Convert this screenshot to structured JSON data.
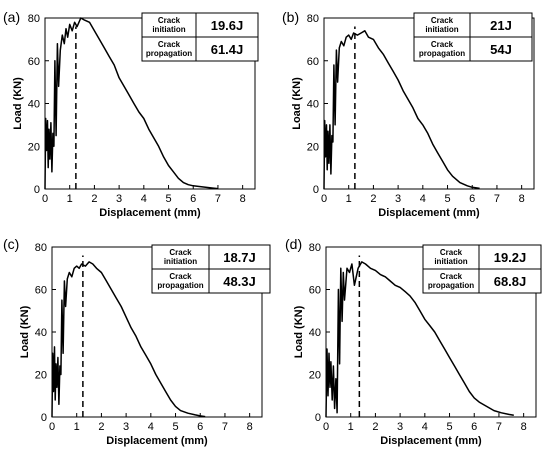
{
  "chart_data": [
    {
      "type": "line",
      "panel_label": "(a)",
      "xlabel": "Displacement (mm)",
      "ylabel": "Load (KN)",
      "xlim": [
        0,
        8.5
      ],
      "ylim": [
        0,
        80
      ],
      "xticks": [
        "0",
        "1",
        "2",
        "3",
        "4",
        "5",
        "6",
        "7",
        "8"
      ],
      "yticks": [
        "0",
        "20",
        "40",
        "60",
        "80"
      ],
      "dashed_line_x": 1.25,
      "table": [
        {
          "label": [
            "Crack",
            "initiation"
          ],
          "value": "19.6J"
        },
        {
          "label": [
            "Crack",
            "propagation"
          ],
          "value": "61.4J"
        }
      ],
      "x": [
        0,
        0.03,
        0.06,
        0.1,
        0.13,
        0.16,
        0.2,
        0.24,
        0.28,
        0.32,
        0.36,
        0.4,
        0.45,
        0.5,
        0.55,
        0.62,
        0.7,
        0.78,
        0.85,
        0.92,
        1.0,
        1.1,
        1.2,
        1.3,
        1.45,
        1.6,
        1.8,
        2.0,
        2.2,
        2.4,
        2.6,
        2.8,
        3.0,
        3.2,
        3.4,
        3.6,
        3.8,
        4.0,
        4.2,
        4.4,
        4.6,
        4.8,
        5.0,
        5.2,
        5.4,
        5.6,
        5.8,
        6.0,
        6.2,
        6.5,
        6.8,
        7.0
      ],
      "y": [
        0,
        33,
        18,
        32,
        10,
        28,
        14,
        31,
        8,
        26,
        20,
        60,
        25,
        68,
        48,
        65,
        72,
        68,
        75,
        71,
        77,
        74,
        78,
        76,
        80,
        79,
        78,
        74,
        70,
        66,
        62,
        58,
        52,
        48,
        44,
        40,
        36,
        33,
        28,
        24,
        20,
        15,
        11,
        8,
        5,
        3,
        2,
        1.5,
        1.2,
        0.8,
        0.4,
        0.2
      ]
    },
    {
      "type": "line",
      "panel_label": "(b)",
      "xlabel": "Displacement (mm)",
      "ylabel": "Load (KN)",
      "xlim": [
        0,
        8.5
      ],
      "ylim": [
        0,
        80
      ],
      "xticks": [
        "0",
        "1",
        "2",
        "3",
        "4",
        "5",
        "6",
        "7",
        "8"
      ],
      "yticks": [
        "0",
        "20",
        "40",
        "60",
        "80"
      ],
      "dashed_line_x": 1.25,
      "table": [
        {
          "label": [
            "Crack",
            "initiation"
          ],
          "value": "21J"
        },
        {
          "label": [
            "Crack",
            "propagation"
          ],
          "value": "54J"
        }
      ],
      "x": [
        0,
        0.03,
        0.06,
        0.1,
        0.13,
        0.16,
        0.2,
        0.24,
        0.28,
        0.32,
        0.36,
        0.4,
        0.45,
        0.5,
        0.55,
        0.62,
        0.7,
        0.8,
        0.9,
        1.0,
        1.1,
        1.2,
        1.35,
        1.5,
        1.65,
        1.8,
        2.0,
        2.2,
        2.4,
        2.6,
        2.8,
        3.0,
        3.2,
        3.4,
        3.6,
        3.8,
        4.0,
        4.2,
        4.4,
        4.6,
        4.8,
        5.0,
        5.2,
        5.5,
        5.8,
        6.0,
        6.3
      ],
      "y": [
        0,
        32,
        15,
        30,
        9,
        27,
        12,
        30,
        7,
        25,
        22,
        58,
        30,
        65,
        50,
        66,
        69,
        67,
        71,
        72,
        70,
        73,
        72,
        73,
        74,
        71,
        70,
        66,
        63,
        59,
        55,
        51,
        46,
        42,
        38,
        33,
        30,
        26,
        21,
        17,
        13,
        9,
        6,
        3,
        1.5,
        0.8,
        0.3
      ]
    },
    {
      "type": "line",
      "panel_label": "(c)",
      "xlabel": "Displacement (mm)",
      "ylabel": "Load (KN)",
      "xlim": [
        0,
        8.5
      ],
      "ylim": [
        0,
        80
      ],
      "xticks": [
        "0",
        "1",
        "2",
        "3",
        "4",
        "5",
        "6",
        "7",
        "8"
      ],
      "yticks": [
        "0",
        "20",
        "40",
        "60",
        "80"
      ],
      "dashed_line_x": 1.25,
      "table": [
        {
          "label": [
            "Crack",
            "initiation"
          ],
          "value": "18.7J"
        },
        {
          "label": [
            "Crack",
            "propagation"
          ],
          "value": "48.3J"
        }
      ],
      "x": [
        0,
        0.03,
        0.06,
        0.1,
        0.13,
        0.16,
        0.2,
        0.24,
        0.28,
        0.32,
        0.36,
        0.4,
        0.45,
        0.5,
        0.55,
        0.62,
        0.7,
        0.8,
        0.9,
        1.0,
        1.1,
        1.2,
        1.35,
        1.5,
        1.65,
        1.8,
        2.0,
        2.2,
        2.4,
        2.6,
        2.8,
        3.0,
        3.2,
        3.4,
        3.6,
        3.8,
        4.0,
        4.2,
        4.4,
        4.6,
        4.8,
        5.0,
        5.2,
        5.5,
        5.8,
        6.0,
        6.2
      ],
      "y": [
        0,
        30,
        12,
        33,
        8,
        25,
        14,
        28,
        6,
        24,
        20,
        55,
        30,
        64,
        52,
        65,
        68,
        66,
        70,
        71,
        70,
        72,
        71,
        73,
        72,
        70,
        68,
        64,
        60,
        56,
        52,
        47,
        42,
        38,
        33,
        29,
        25,
        20,
        16,
        12,
        8,
        5,
        3,
        1.8,
        1.0,
        0.5,
        0.2
      ]
    },
    {
      "type": "line",
      "panel_label": "(d)",
      "xlabel": "Displacement (mm)",
      "ylabel": "Load (KN)",
      "xlim": [
        0,
        8.5
      ],
      "ylim": [
        0,
        80
      ],
      "xticks": [
        "0",
        "1",
        "2",
        "3",
        "4",
        "5",
        "6",
        "7",
        "8"
      ],
      "yticks": [
        "0",
        "20",
        "40",
        "60",
        "80"
      ],
      "dashed_line_x": 1.35,
      "table": [
        {
          "label": [
            "Crack",
            "initiation"
          ],
          "value": "19.2J"
        },
        {
          "label": [
            "Crack",
            "propagation"
          ],
          "value": "68.8J"
        }
      ],
      "x": [
        0,
        0.04,
        0.08,
        0.12,
        0.16,
        0.2,
        0.25,
        0.3,
        0.35,
        0.4,
        0.45,
        0.5,
        0.55,
        0.6,
        0.65,
        0.7,
        0.75,
        0.85,
        0.95,
        1.05,
        1.15,
        1.3,
        1.45,
        1.6,
        1.8,
        2.0,
        2.2,
        2.4,
        2.6,
        2.8,
        3.0,
        3.2,
        3.4,
        3.6,
        3.8,
        4.0,
        4.2,
        4.4,
        4.6,
        4.8,
        5.0,
        5.2,
        5.4,
        5.6,
        5.8,
        6.0,
        6.2,
        6.5,
        6.8,
        7.1,
        7.4,
        7.6
      ],
      "y": [
        0,
        32,
        10,
        30,
        14,
        26,
        8,
        24,
        4,
        18,
        2,
        60,
        25,
        70,
        45,
        68,
        55,
        70,
        68,
        72,
        62,
        70,
        73,
        72,
        70,
        69,
        67,
        66,
        64,
        62,
        61,
        59,
        57,
        54,
        50,
        46,
        43,
        40,
        36,
        32,
        28,
        24,
        20,
        16,
        12,
        9,
        7,
        5,
        3,
        2,
        1.2,
        0.8
      ]
    }
  ]
}
